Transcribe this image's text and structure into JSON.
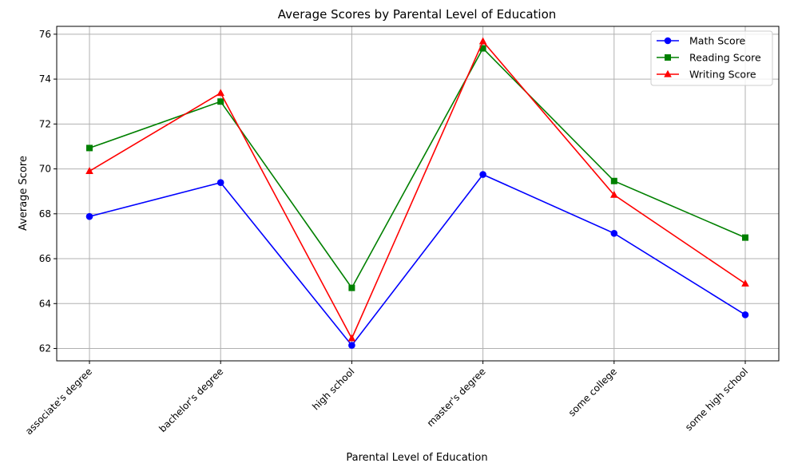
{
  "chart_data": {
    "type": "line",
    "title": "Average Scores by Parental Level of Education",
    "xlabel": "Parental Level of Education",
    "ylabel": "Average Score",
    "categories": [
      "associate's degree",
      "bachelor's degree",
      "high school",
      "master's degree",
      "some college",
      "some high school"
    ],
    "ylim": [
      61.45,
      76.35
    ],
    "yticks": [
      62,
      64,
      66,
      68,
      70,
      72,
      74,
      76
    ],
    "grid": true,
    "legend_position": "top-right",
    "series": [
      {
        "name": "Math Score",
        "color": "#0000ff",
        "marker": "circle",
        "values": [
          67.88,
          69.39,
          62.14,
          69.75,
          67.13,
          63.5
        ]
      },
      {
        "name": "Reading Score",
        "color": "#008000",
        "marker": "square",
        "values": [
          70.93,
          73.0,
          64.7,
          75.37,
          69.46,
          66.94
        ]
      },
      {
        "name": "Writing Score",
        "color": "#ff0000",
        "marker": "triangle",
        "values": [
          69.9,
          73.38,
          62.45,
          75.68,
          68.84,
          64.89
        ]
      }
    ]
  }
}
